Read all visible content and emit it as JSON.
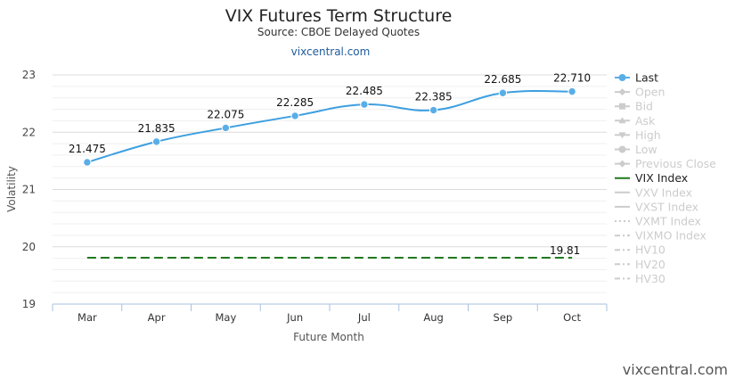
{
  "header": {
    "title": "VIX Futures Term Structure",
    "subtitle": "Source: CBOE Delayed Quotes",
    "link": "vixcentral.com"
  },
  "credit": "vixcentral.com",
  "colors": {
    "last": "#5aaee8",
    "last_line": "#3d9fe0",
    "vix": "#1f7a1f",
    "legend_inactive": "#cccccc",
    "legend_active": "#222222"
  },
  "chart_data": {
    "type": "line",
    "xlabel": "Future Month",
    "ylabel": "Volatility",
    "ylim": [
      19,
      23
    ],
    "yticks": [
      "19",
      "20",
      "21",
      "22",
      "23"
    ],
    "grid": true,
    "legend_position": "right",
    "categories": [
      "Mar",
      "Apr",
      "May",
      "Jun",
      "Jul",
      "Aug",
      "Sep",
      "Oct"
    ],
    "series": [
      {
        "name": "Last",
        "values": [
          21.475,
          21.835,
          22.075,
          22.285,
          22.485,
          22.385,
          22.685,
          22.71
        ],
        "labels": [
          "21.475",
          "21.835",
          "22.075",
          "22.285",
          "22.485",
          "22.385",
          "22.685",
          "22.710"
        ]
      },
      {
        "name": "VIX Index",
        "value": 19.81,
        "label": "19.81"
      }
    ],
    "legend": [
      {
        "name": "Last",
        "active": true,
        "symbol": "line-circle"
      },
      {
        "name": "Open",
        "active": false,
        "symbol": "line-diamond"
      },
      {
        "name": "Bid",
        "active": false,
        "symbol": "line-square"
      },
      {
        "name": "Ask",
        "active": false,
        "symbol": "line-triangle"
      },
      {
        "name": "High",
        "active": false,
        "symbol": "line-triangle-down"
      },
      {
        "name": "Low",
        "active": false,
        "symbol": "line-circle"
      },
      {
        "name": "Previous Close",
        "active": false,
        "symbol": "line-diamond"
      },
      {
        "name": "VIX Index",
        "active": true,
        "symbol": "line"
      },
      {
        "name": "VXV Index",
        "active": false,
        "symbol": "line"
      },
      {
        "name": "VXST Index",
        "active": false,
        "symbol": "line"
      },
      {
        "name": "VXMT Index",
        "active": false,
        "symbol": "dotted"
      },
      {
        "name": "VIXMO Index",
        "active": false,
        "symbol": "dashdot"
      },
      {
        "name": "HV10",
        "active": false,
        "symbol": "dashdot"
      },
      {
        "name": "HV20",
        "active": false,
        "symbol": "dashdot"
      },
      {
        "name": "HV30",
        "active": false,
        "symbol": "dashdot"
      }
    ]
  }
}
